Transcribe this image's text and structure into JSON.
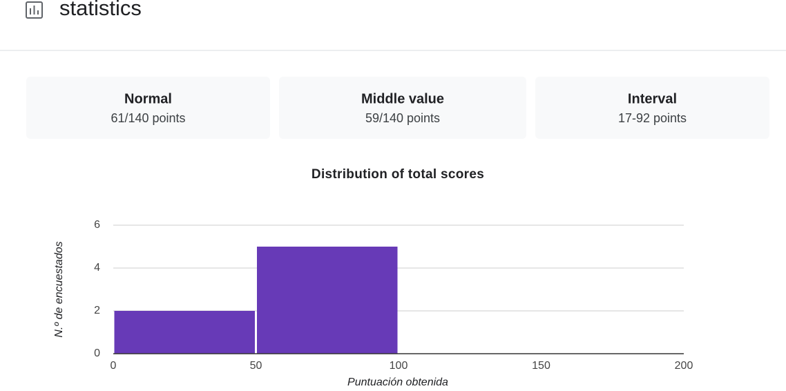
{
  "header": {
    "title": "statistics"
  },
  "stats": [
    {
      "label": "Normal",
      "value": "61/140 points"
    },
    {
      "label": "Middle value",
      "value": "59/140 points"
    },
    {
      "label": "Interval",
      "value": "17-92 points"
    }
  ],
  "chart_data": {
    "type": "histogram",
    "title": "Distribution of total scores",
    "x_label": "Puntuación obtenida",
    "y_label": "N.º de encuestados",
    "bins": [
      0,
      50,
      100,
      150,
      200
    ],
    "values": [
      2,
      5,
      0,
      0
    ],
    "color": "#673ab7",
    "xlim": [
      0,
      200
    ],
    "xticks": [
      0,
      50,
      100,
      150,
      200
    ],
    "ylim": [
      0,
      6
    ],
    "yticks": [
      0,
      2,
      4,
      6
    ],
    "grid": true
  }
}
